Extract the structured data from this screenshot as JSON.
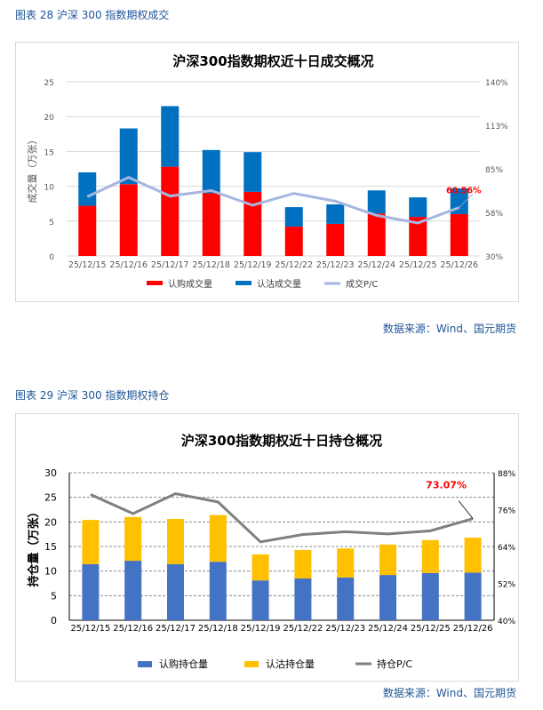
{
  "figures": [
    {
      "caption": "图表 28  沪深 300 指数期权成交",
      "source": "数据来源：Wind、国元期货"
    },
    {
      "caption": "图表 29  沪深 300 指数期权持仓",
      "source": "数据来源：Wind、国元期货"
    }
  ],
  "chart_data": [
    {
      "type": "bar",
      "stacked": true,
      "title": "沪深300指数期权近十日成交概况",
      "ylabel": "成交量（万张）",
      "categories": [
        "25/12/15",
        "25/12/16",
        "25/12/17",
        "25/12/18",
        "25/12/19",
        "25/12/22",
        "25/12/23",
        "25/12/24",
        "25/12/25",
        "25/12/26"
      ],
      "ylim": [
        0,
        25
      ],
      "yticks": [
        "0",
        "5",
        "10",
        "15",
        "20",
        "25"
      ],
      "y2lim": [
        30,
        140
      ],
      "y2ticks": [
        "30%",
        "58%",
        "85%",
        "113%",
        "140%"
      ],
      "grid": true,
      "legend": "bottom",
      "series": [
        {
          "name": "认购成交量",
          "kind": "bar",
          "color": "#ff0000",
          "values": [
            7.2,
            10.3,
            12.8,
            9.0,
            9.2,
            4.2,
            4.6,
            6.1,
            5.6,
            6.0
          ]
        },
        {
          "name": "认沽成交量",
          "kind": "bar",
          "color": "#0070c0",
          "values": [
            4.8,
            8.0,
            8.7,
            6.2,
            5.7,
            2.8,
            2.8,
            3.3,
            2.8,
            3.7
          ]
        },
        {
          "name": "成交P/C",
          "kind": "line",
          "axis": "right",
          "color": "#a6b6e0",
          "values": [
            67.4,
            79.6,
            67.8,
            71.3,
            62.0,
            69.5,
            64.6,
            55.6,
            50.8,
            60.56
          ]
        }
      ],
      "annotation": "60.56%"
    },
    {
      "type": "bar",
      "stacked": true,
      "title": "沪深300指数期权近十日持仓概况",
      "ylabel": "持仓量（万张）",
      "categories": [
        "25/12/15",
        "25/12/16",
        "25/12/17",
        "25/12/18",
        "25/12/19",
        "25/12/22",
        "25/12/23",
        "25/12/24",
        "25/12/25",
        "25/12/26"
      ],
      "ylim": [
        0,
        30
      ],
      "yticks": [
        "0",
        "5",
        "10",
        "15",
        "20",
        "25",
        "30"
      ],
      "y2lim": [
        40,
        88
      ],
      "y2ticks": [
        "40%",
        "52%",
        "64%",
        "76%",
        "88%"
      ],
      "grid": true,
      "legend": "bottom",
      "series": [
        {
          "name": "认购持仓量",
          "kind": "bar",
          "color": "#4472c4",
          "values": [
            11.4,
            12.1,
            11.4,
            11.9,
            8.1,
            8.5,
            8.7,
            9.2,
            9.6,
            9.7
          ]
        },
        {
          "name": "认沽持仓量",
          "kind": "bar",
          "color": "#ffc000",
          "values": [
            9.0,
            8.9,
            9.2,
            9.5,
            5.3,
            5.8,
            5.9,
            6.2,
            6.7,
            7.1
          ]
        },
        {
          "name": "持仓P/C",
          "kind": "line",
          "axis": "right",
          "color": "#7f7f7f",
          "values": [
            80.9,
            74.7,
            81.2,
            78.5,
            65.5,
            67.9,
            68.8,
            68.1,
            69.1,
            73.07
          ]
        }
      ],
      "annotation": "73.07%"
    }
  ]
}
